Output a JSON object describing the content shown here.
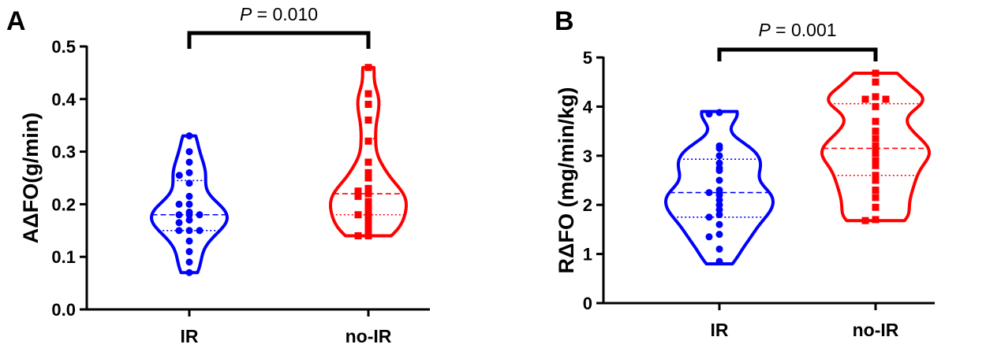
{
  "chart_data": [
    {
      "type": "violin",
      "panel_label": "A",
      "ylabel": "AΔFO(g/min)",
      "ylim": [
        0.0,
        0.5
      ],
      "yticks": [
        "0.0",
        "0.1",
        "0.2",
        "0.3",
        "0.4",
        "0.5"
      ],
      "categories": [
        "IR",
        "no-IR"
      ],
      "annotation": {
        "prefix": "P",
        "text": " = 0.010"
      },
      "series": [
        {
          "category": "IR",
          "color": "#0000ff",
          "marker": "circle",
          "median": 0.18,
          "q1": 0.15,
          "q3": 0.245,
          "min": 0.07,
          "max": 0.33,
          "points": [
            0.33,
            0.3,
            0.28,
            0.26,
            0.255,
            0.24,
            0.215,
            0.2,
            0.2,
            0.185,
            0.18,
            0.18,
            0.18,
            0.17,
            0.165,
            0.15,
            0.15,
            0.15,
            0.13,
            0.11,
            0.09,
            0.07
          ]
        },
        {
          "category": "no-IR",
          "color": "#ff0000",
          "marker": "square",
          "median": 0.22,
          "q1": 0.18,
          "q3": 0.325,
          "min": 0.14,
          "max": 0.46,
          "points": [
            0.46,
            0.41,
            0.39,
            0.36,
            0.32,
            0.28,
            0.26,
            0.25,
            0.23,
            0.225,
            0.22,
            0.215,
            0.205,
            0.2,
            0.19,
            0.18,
            0.18,
            0.17,
            0.16,
            0.15,
            0.14,
            0.14
          ]
        }
      ]
    },
    {
      "type": "violin",
      "panel_label": "B",
      "ylabel": "RΔFO (mg/min/kg)",
      "ylim": [
        0,
        5
      ],
      "yticks": [
        "0",
        "1",
        "2",
        "3",
        "4",
        "5"
      ],
      "categories": [
        "IR",
        "no-IR"
      ],
      "annotation": {
        "prefix": "P",
        "text": " = 0.001"
      },
      "series": [
        {
          "category": "IR",
          "color": "#0000ff",
          "marker": "circle",
          "median": 2.25,
          "q1": 1.75,
          "q3": 2.93,
          "min": 0.8,
          "max": 3.9,
          "points": [
            3.88,
            3.85,
            3.2,
            3.15,
            3.0,
            2.85,
            2.75,
            2.7,
            2.5,
            2.3,
            2.25,
            2.2,
            2.1,
            2.0,
            1.9,
            1.8,
            1.75,
            1.6,
            1.4,
            1.35,
            1.1,
            0.85
          ]
        },
        {
          "category": "no-IR",
          "color": "#ff0000",
          "marker": "square",
          "median": 3.15,
          "q1": 2.6,
          "q3": 4.06,
          "min": 1.68,
          "max": 4.68,
          "points": [
            4.68,
            4.5,
            4.2,
            4.15,
            4.15,
            4.0,
            3.7,
            3.5,
            3.35,
            3.2,
            3.1,
            3.05,
            2.9,
            2.8,
            2.6,
            2.5,
            2.3,
            2.15,
            1.95,
            1.7,
            1.68
          ]
        }
      ]
    }
  ]
}
